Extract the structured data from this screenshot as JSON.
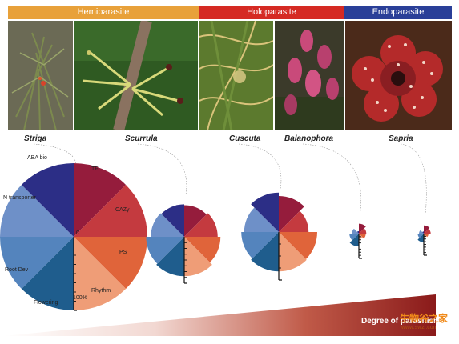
{
  "categories": [
    {
      "label": "Hemiparasite",
      "color": "#e8a13a"
    },
    {
      "label": "Holoparasite",
      "color": "#d52a23"
    },
    {
      "label": "Endoparasite",
      "color": "#2a3f98"
    }
  ],
  "photos": [
    {
      "name": "striga-photo"
    },
    {
      "name": "scurrula-photo"
    },
    {
      "name": "cuscuta-photo"
    },
    {
      "name": "balanophora-photo"
    },
    {
      "name": "sapria-photo"
    }
  ],
  "species": [
    "Striga",
    "Scurrula",
    "Cuscuta",
    "Balanophora",
    "Sapria"
  ],
  "axis_labels": {
    "aba": "ABA bio",
    "tf": "TF",
    "n_transporter": "N transporter",
    "cazy": "CAZy",
    "ps": "PS",
    "root_dev": "Root Dev",
    "rhythm": "Rhythm",
    "flowering": "Flowering",
    "zero": "0",
    "hundred": "100%"
  },
  "chart_data": {
    "type": "radial-bar",
    "categories": [
      "TF",
      "CAZy",
      "PS",
      "Rhythm",
      "Flowering",
      "Root Dev",
      "N transporter",
      "ABA bio"
    ],
    "colors": [
      "#951c3c",
      "#c43a3f",
      "#e0643a",
      "#ef9d77",
      "#1f5d8d",
      "#5484bd",
      "#6e90c8",
      "#2c2e86"
    ],
    "series": [
      {
        "name": "Striga",
        "values": [
          100,
          100,
          100,
          100,
          100,
          100,
          100,
          100
        ]
      },
      {
        "name": "Scurrula",
        "values": [
          68,
          72,
          78,
          85,
          85,
          82,
          72,
          70
        ]
      },
      {
        "name": "Cuscuta",
        "values": [
          75,
          62,
          80,
          82,
          82,
          78,
          72,
          82
        ]
      },
      {
        "name": "Balanophora",
        "values": [
          40,
          30,
          28,
          22,
          52,
          38,
          28,
          10
        ]
      },
      {
        "name": "Sapria",
        "values": [
          38,
          32,
          22,
          18,
          40,
          28,
          22,
          10
        ]
      }
    ],
    "ylim": [
      0,
      100
    ],
    "xlabel": "Degree of parasitism"
  },
  "footer": {
    "gradient_label": "Degree of parasitism",
    "watermark_cn": "生物谷之家",
    "watermark_url": "www.swzj.com"
  }
}
